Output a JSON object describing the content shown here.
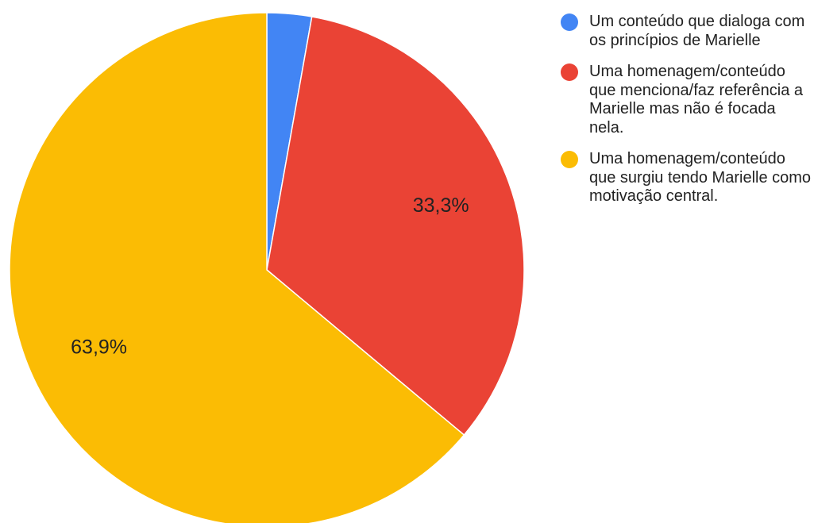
{
  "chart_data": {
    "type": "pie",
    "title": "",
    "slices": [
      {
        "label": "Um conteúdo que dialoga com os princípios de Marielle",
        "value": 2.8,
        "display": "",
        "color": "#4285f4"
      },
      {
        "label": "Uma homenagem/conteúdo que menciona/faz referência a Marielle mas não é focada nela.",
        "value": 33.3,
        "display": "33,3%",
        "color": "#ea4335"
      },
      {
        "label": "Uma homenagem/conteúdo que surgiu tendo Marielle como motivação central.",
        "value": 63.9,
        "display": "63,9%",
        "color": "#fbbc04"
      }
    ],
    "start_angle_deg": 0,
    "direction": "clockwise",
    "legend_position": "right"
  }
}
